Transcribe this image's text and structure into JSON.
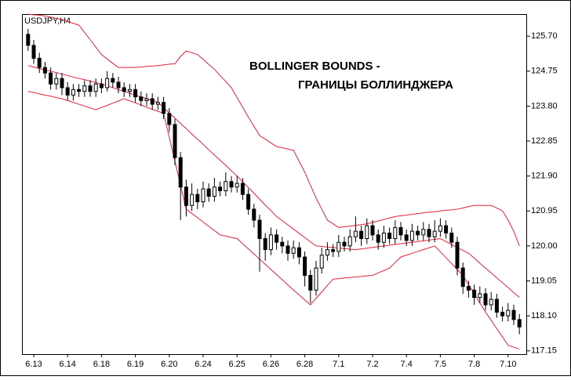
{
  "chart_data": {
    "type": "candlestick",
    "title": "USDJPY,H4",
    "annotations": [
      "BOLLINGER BOUNDS -",
      "ГРАНИЦЫ БОЛЛИНДЖЕРА"
    ],
    "annotation_color": "#ff0000",
    "up_color": "#ffffff",
    "down_color": "#000000",
    "categories": [
      null,
      "6.13",
      null,
      null,
      null,
      null,
      null,
      "6.14",
      null,
      null,
      null,
      null,
      null,
      "6.18",
      null,
      null,
      null,
      null,
      null,
      "6.19",
      null,
      null,
      null,
      null,
      null,
      "6.20",
      null,
      null,
      null,
      null,
      null,
      "6.24",
      null,
      null,
      null,
      null,
      null,
      "6.25",
      null,
      null,
      null,
      null,
      null,
      "6.26",
      null,
      null,
      null,
      null,
      null,
      "6.28",
      null,
      null,
      null,
      null,
      null,
      "7.1",
      null,
      null,
      null,
      null,
      null,
      "7.2",
      null,
      null,
      null,
      null,
      null,
      "7.4",
      null,
      null,
      null,
      null,
      null,
      "7.5",
      null,
      null,
      null,
      null,
      null,
      "7.8",
      null,
      null,
      null,
      null,
      null,
      "7.10",
      null,
      null
    ],
    "open": [
      125.75,
      125.45,
      125.1,
      124.85,
      124.7,
      124.4,
      124.55,
      124.3,
      124.1,
      124.25,
      124.2,
      124.35,
      124.2,
      124.4,
      124.3,
      124.55,
      124.45,
      124.3,
      124.2,
      124.25,
      124.05,
      123.95,
      124.0,
      123.85,
      123.9,
      123.6,
      123.3,
      122.4,
      121.6,
      121.1,
      121.4,
      121.2,
      121.55,
      121.35,
      121.6,
      121.5,
      121.75,
      121.6,
      121.7,
      121.4,
      121.0,
      120.7,
      120.2,
      119.9,
      120.3,
      120.1,
      120.0,
      119.8,
      119.95,
      119.7,
      119.2,
      118.8,
      119.4,
      119.75,
      119.9,
      119.85,
      120.1,
      120.0,
      120.25,
      120.4,
      120.2,
      120.55,
      120.3,
      120.1,
      120.35,
      120.2,
      120.5,
      120.3,
      120.15,
      120.4,
      120.3,
      120.45,
      120.25,
      120.4,
      120.55,
      120.35,
      120.1,
      119.4,
      118.9,
      118.8,
      118.6,
      118.7,
      118.4,
      118.55,
      118.2,
      118.1,
      118.25,
      118.0
    ],
    "high": [
      125.9,
      125.6,
      125.25,
      125.0,
      124.85,
      124.7,
      124.7,
      124.45,
      124.4,
      124.4,
      124.5,
      124.5,
      124.55,
      124.55,
      124.75,
      124.7,
      124.6,
      124.45,
      124.4,
      124.4,
      124.2,
      124.15,
      124.15,
      124.05,
      124.05,
      123.75,
      123.45,
      122.55,
      121.8,
      121.7,
      121.55,
      121.75,
      121.7,
      121.85,
      121.75,
      122.0,
      121.9,
      121.9,
      121.85,
      121.55,
      121.15,
      120.85,
      120.35,
      120.5,
      120.45,
      120.25,
      120.15,
      120.15,
      120.1,
      119.85,
      119.35,
      119.6,
      119.95,
      120.1,
      120.05,
      120.3,
      120.25,
      120.45,
      120.8,
      120.55,
      120.75,
      120.7,
      120.45,
      120.55,
      120.5,
      120.7,
      120.65,
      120.45,
      120.6,
      120.55,
      120.65,
      120.6,
      120.7,
      120.75,
      120.7,
      120.5,
      120.25,
      119.55,
      119.05,
      118.95,
      118.9,
      118.85,
      118.75,
      118.7,
      118.35,
      118.45,
      118.4,
      118.15
    ],
    "low": [
      125.3,
      124.95,
      124.7,
      124.55,
      124.25,
      124.25,
      124.1,
      123.95,
      123.95,
      124.05,
      124.05,
      124.05,
      124.05,
      124.15,
      124.2,
      124.3,
      124.15,
      124.05,
      124.05,
      123.9,
      123.8,
      123.8,
      123.7,
      123.7,
      123.45,
      123.1,
      122.2,
      120.7,
      120.8,
      120.95,
      121.0,
      121.05,
      121.2,
      121.2,
      121.35,
      121.35,
      121.45,
      121.45,
      121.25,
      120.85,
      120.5,
      119.3,
      119.6,
      119.75,
      119.9,
      119.8,
      119.6,
      119.65,
      119.5,
      118.9,
      118.45,
      118.65,
      119.25,
      119.6,
      119.7,
      119.7,
      119.85,
      119.85,
      120.1,
      120.0,
      120.05,
      120.15,
      119.9,
      119.95,
      120.05,
      120.05,
      120.15,
      120.0,
      120.0,
      120.15,
      120.15,
      120.1,
      120.1,
      120.25,
      120.2,
      119.95,
      119.2,
      118.7,
      118.6,
      118.4,
      118.45,
      118.25,
      118.25,
      118.05,
      117.95,
      117.95,
      117.85,
      117.6
    ],
    "close": [
      125.45,
      125.1,
      124.85,
      124.7,
      124.4,
      124.55,
      124.3,
      124.1,
      124.25,
      124.2,
      124.35,
      124.2,
      124.4,
      124.3,
      124.55,
      124.45,
      124.3,
      124.2,
      124.25,
      124.05,
      123.95,
      124.0,
      123.85,
      123.9,
      123.6,
      123.3,
      122.4,
      121.6,
      121.1,
      121.4,
      121.2,
      121.55,
      121.35,
      121.6,
      121.5,
      121.75,
      121.6,
      121.7,
      121.4,
      121.0,
      120.7,
      120.2,
      119.9,
      120.3,
      120.1,
      120.0,
      119.8,
      119.95,
      119.7,
      119.2,
      118.8,
      119.4,
      119.75,
      119.9,
      119.85,
      120.1,
      120.0,
      120.25,
      120.4,
      120.2,
      120.55,
      120.3,
      120.1,
      120.35,
      120.2,
      120.5,
      120.3,
      120.15,
      120.4,
      120.3,
      120.45,
      120.25,
      120.4,
      120.55,
      120.35,
      120.1,
      119.4,
      118.9,
      118.8,
      118.6,
      118.7,
      118.4,
      118.55,
      118.2,
      118.1,
      118.25,
      118.0,
      117.8
    ],
    "bands": [
      {
        "color": "#e8203a",
        "values": [
          126.3,
          126.28,
          126.27,
          126.25,
          126.22,
          126.18,
          126.15,
          126.1,
          126.05,
          126.0,
          125.8,
          125.6,
          125.4,
          125.2,
          125.08,
          124.96,
          124.85,
          124.85,
          124.85,
          124.85,
          124.86,
          124.88,
          124.89,
          124.9,
          124.92,
          124.94,
          124.95,
          125.15,
          125.3,
          125.25,
          125.2,
          125.07,
          124.93,
          124.8,
          124.63,
          124.47,
          124.3,
          124.03,
          123.77,
          123.5,
          123.25,
          123.0,
          122.9,
          122.8,
          122.7,
          122.67,
          122.63,
          122.6,
          122.3,
          122.0,
          121.65,
          121.3,
          121.0,
          120.7,
          120.6,
          120.5,
          120.52,
          120.54,
          120.56,
          120.58,
          120.6,
          120.64,
          120.68,
          120.72,
          120.76,
          120.8,
          120.82,
          120.84,
          120.86,
          120.88,
          120.9,
          120.92,
          120.93,
          120.95,
          120.97,
          120.98,
          121.0,
          121.03,
          121.07,
          121.1,
          121.1,
          121.1,
          121.1,
          121.03,
          120.95,
          120.7,
          120.4,
          120.0
        ]
      },
      {
        "color": "#e8203a",
        "values": [
          124.9,
          124.86,
          124.82,
          124.78,
          124.75,
          124.71,
          124.67,
          124.63,
          124.59,
          124.55,
          124.52,
          124.48,
          124.44,
          124.4,
          124.35,
          124.3,
          124.25,
          124.2,
          124.15,
          124.1,
          124.05,
          124.0,
          123.95,
          123.9,
          123.76,
          123.61,
          123.47,
          123.33,
          123.19,
          123.04,
          122.9,
          122.76,
          122.61,
          122.47,
          122.33,
          122.19,
          122.04,
          121.9,
          121.74,
          121.59,
          121.43,
          121.27,
          121.11,
          120.96,
          120.8,
          120.69,
          120.57,
          120.46,
          120.34,
          120.23,
          120.11,
          120.0,
          119.99,
          119.97,
          119.96,
          119.94,
          119.93,
          119.91,
          119.9,
          119.92,
          119.94,
          119.96,
          119.98,
          120.0,
          120.02,
          120.04,
          120.06,
          120.08,
          120.1,
          120.12,
          120.14,
          120.16,
          120.18,
          120.2,
          120.12,
          120.04,
          119.96,
          119.88,
          119.8,
          119.67,
          119.53,
          119.4,
          119.27,
          119.13,
          119.0,
          118.87,
          118.73,
          118.6
        ]
      },
      {
        "color": "#e8203a",
        "values": [
          124.2,
          124.17,
          124.13,
          124.1,
          124.07,
          124.03,
          124.0,
          123.95,
          123.9,
          123.85,
          123.8,
          123.75,
          123.7,
          123.76,
          123.82,
          123.88,
          123.94,
          124.0,
          123.94,
          123.89,
          123.83,
          123.77,
          123.71,
          123.66,
          123.6,
          122.95,
          122.3,
          121.65,
          121.0,
          120.88,
          120.77,
          120.65,
          120.53,
          120.42,
          120.3,
          120.27,
          120.23,
          120.2,
          120.06,
          119.92,
          119.78,
          119.64,
          119.5,
          119.36,
          119.22,
          119.08,
          118.94,
          118.8,
          118.67,
          118.53,
          118.4,
          118.58,
          118.75,
          118.93,
          119.1,
          119.11,
          119.13,
          119.14,
          119.16,
          119.17,
          119.19,
          119.2,
          119.27,
          119.33,
          119.4,
          119.55,
          119.7,
          119.75,
          119.8,
          119.85,
          119.9,
          119.95,
          120.0,
          119.84,
          119.68,
          119.52,
          119.36,
          119.2,
          118.95,
          118.7,
          118.45,
          118.2,
          117.98,
          117.75,
          117.53,
          117.3,
          117.25,
          117.2
        ]
      }
    ],
    "ylim": [
      117.06,
      126.3
    ],
    "yticks": [
      {
        "value": 125.7,
        "label": "125.70"
      },
      124.75,
      {
        "value": 123.8,
        "label": "123.80"
      },
      122.85,
      {
        "value": 121.9,
        "label": "121.90"
      },
      120.95,
      {
        "value": 120.0,
        "label": "120.00"
      },
      119.05,
      {
        "value": 118.1,
        "label": "118.10"
      },
      117.15
    ]
  }
}
